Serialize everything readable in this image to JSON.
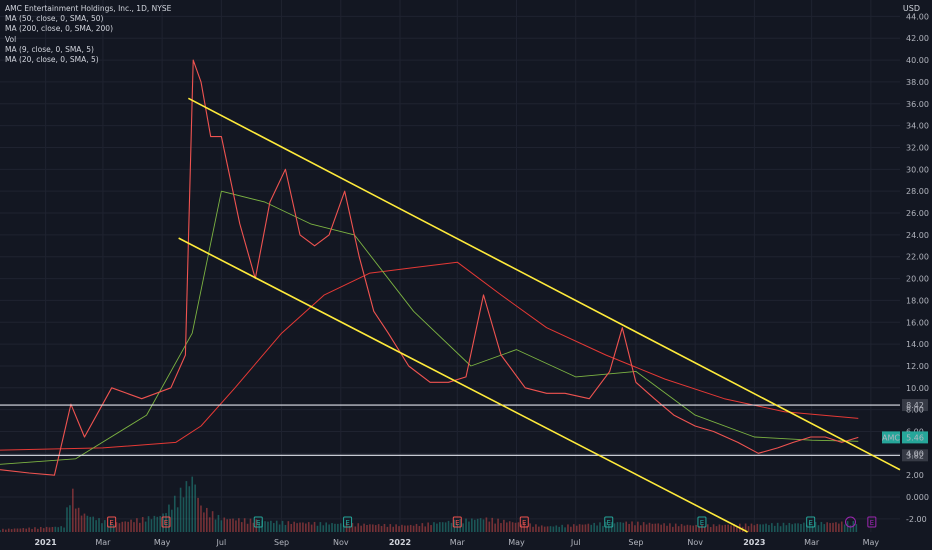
{
  "title": "AMC Entertainment Holdings, Inc., 1D, NYSE",
  "currency": "USD",
  "indicators": [
    "MA (50, close, 0, SMA, 50)",
    "MA (200, close, 0, SMA, 200)",
    "Vol",
    "MA (9, close, 0, SMA, 5)",
    "MA (20, close, 0, SMA, 5)"
  ],
  "colors": {
    "background": "#131722",
    "grid": "#1f2330",
    "up": "#26a69a",
    "down": "#ef5350",
    "trendline": "#ffeb3b",
    "hline": "#e0e3eb",
    "ma200": "#e53935",
    "ma50": "#7cb342",
    "ma9": "#ff9800",
    "ma20": "#4caf50",
    "price_badge": "#26a69a",
    "earnings_up": "#26a69a",
    "earnings_down": "#ef5350",
    "earnings_future": "#9c27b0"
  },
  "chart_data": {
    "type": "line",
    "ylim": [
      -3.2,
      45.5
    ],
    "y_ticks": [
      "-2.00",
      "0.000",
      "2.00",
      "4.00",
      "6.00",
      "8.00",
      "10.00",
      "12.00",
      "14.00",
      "16.00",
      "18.00",
      "20.00",
      "22.00",
      "24.00",
      "26.00",
      "28.00",
      "30.00",
      "32.00",
      "34.00",
      "36.00",
      "38.00",
      "40.00",
      "42.00",
      "44.00"
    ],
    "y_tick_values": [
      -2,
      0,
      2,
      4,
      6,
      8,
      10,
      12,
      14,
      16,
      18,
      20,
      22,
      24,
      26,
      28,
      30,
      32,
      34,
      36,
      38,
      40,
      42,
      44
    ],
    "x_range": [
      "2020-11-15",
      "2023-05-31"
    ],
    "x_ticks": [
      {
        "label": "2021",
        "date": "2021-01-01",
        "year": true
      },
      {
        "label": "Mar",
        "date": "2021-03-01"
      },
      {
        "label": "May",
        "date": "2021-05-01"
      },
      {
        "label": "Jul",
        "date": "2021-07-01"
      },
      {
        "label": "Sep",
        "date": "2021-09-01"
      },
      {
        "label": "Nov",
        "date": "2021-11-01"
      },
      {
        "label": "2022",
        "date": "2022-01-01",
        "year": true
      },
      {
        "label": "Mar",
        "date": "2022-03-01"
      },
      {
        "label": "May",
        "date": "2022-05-01"
      },
      {
        "label": "Jul",
        "date": "2022-07-01"
      },
      {
        "label": "Sep",
        "date": "2022-09-01"
      },
      {
        "label": "Nov",
        "date": "2022-11-01"
      },
      {
        "label": "2023",
        "date": "2023-01-01",
        "year": true
      },
      {
        "label": "Mar",
        "date": "2023-03-01"
      },
      {
        "label": "May",
        "date": "2023-05-01"
      }
    ],
    "price": {
      "dates": [
        "2020-11-15",
        "2020-12-15",
        "2021-01-10",
        "2021-01-27",
        "2021-02-10",
        "2021-03-10",
        "2021-04-10",
        "2021-05-10",
        "2021-05-25",
        "2021-06-02",
        "2021-06-10",
        "2021-06-20",
        "2021-07-01",
        "2021-07-20",
        "2021-08-05",
        "2021-08-20",
        "2021-09-05",
        "2021-09-20",
        "2021-10-05",
        "2021-10-20",
        "2021-11-05",
        "2021-11-20",
        "2021-12-05",
        "2021-12-20",
        "2022-01-10",
        "2022-02-01",
        "2022-02-20",
        "2022-03-10",
        "2022-03-28",
        "2022-04-15",
        "2022-05-10",
        "2022-06-01",
        "2022-06-20",
        "2022-07-15",
        "2022-08-05",
        "2022-08-18",
        "2022-09-01",
        "2022-09-20",
        "2022-10-10",
        "2022-11-01",
        "2022-11-20",
        "2022-12-15",
        "2023-01-05",
        "2023-01-25",
        "2023-02-10",
        "2023-02-28",
        "2023-03-15",
        "2023-04-01",
        "2023-04-18"
      ],
      "values": [
        2.5,
        2.2,
        2.0,
        8.5,
        5.5,
        10.0,
        9.0,
        10.0,
        13.0,
        40.0,
        38.0,
        33.0,
        33.0,
        25.0,
        20.0,
        27.0,
        30.0,
        24.0,
        23.0,
        24.0,
        28.0,
        22.0,
        17.0,
        15.0,
        12.0,
        10.5,
        10.5,
        11.0,
        18.5,
        13.0,
        10.0,
        9.5,
        9.5,
        9.0,
        11.5,
        15.5,
        10.5,
        9.0,
        7.5,
        6.5,
        6.0,
        5.0,
        4.0,
        4.5,
        5.0,
        5.5,
        5.5,
        5.0,
        5.46
      ]
    },
    "ma200": {
      "dates": [
        "2020-11-15",
        "2021-03-01",
        "2021-05-15",
        "2021-06-10",
        "2021-07-15",
        "2021-09-01",
        "2021-10-15",
        "2021-12-01",
        "2022-01-15",
        "2022-03-01",
        "2022-04-15",
        "2022-06-01",
        "2022-08-01",
        "2022-10-01",
        "2022-12-01",
        "2023-02-01",
        "2023-04-18"
      ],
      "values": [
        4.3,
        4.5,
        5.0,
        6.5,
        10.0,
        15.0,
        18.5,
        20.5,
        21.0,
        21.5,
        18.5,
        15.5,
        13.0,
        10.8,
        9.0,
        7.8,
        7.2
      ]
    },
    "ma50": {
      "dates": [
        "2020-11-15",
        "2021-02-01",
        "2021-04-15",
        "2021-06-01",
        "2021-07-01",
        "2021-08-15",
        "2021-10-01",
        "2021-11-15",
        "2022-01-15",
        "2022-03-15",
        "2022-05-01",
        "2022-07-01",
        "2022-09-01",
        "2022-11-01",
        "2023-01-01",
        "2023-03-01",
        "2023-04-18"
      ],
      "values": [
        3.0,
        3.5,
        7.5,
        15.0,
        28.0,
        27.0,
        25.0,
        24.0,
        17.0,
        12.0,
        13.5,
        11.0,
        11.5,
        7.5,
        5.5,
        5.2,
        5.1
      ]
    },
    "hlines": [
      {
        "value": 8.42,
        "label": "8.42"
      },
      {
        "value": 3.82,
        "label": "3.82"
      }
    ],
    "last_price": {
      "label": "AMC",
      "value": 5.46,
      "value_label": "5.46"
    },
    "trendlines": [
      {
        "name": "upper-channel-line",
        "from": {
          "date": "2021-05-28",
          "value": 36.5
        },
        "to": {
          "date": "2023-05-31",
          "value": 2.5
        }
      },
      {
        "name": "lower-channel-line",
        "from": {
          "date": "2021-05-18",
          "value": 23.7
        },
        "to": {
          "date": "2022-12-25",
          "value": -3.2
        }
      }
    ],
    "earnings": [
      {
        "date": "2021-03-10",
        "type": "down"
      },
      {
        "date": "2021-05-05",
        "type": "down"
      },
      {
        "date": "2021-08-08",
        "type": "up"
      },
      {
        "date": "2021-11-08",
        "type": "up"
      },
      {
        "date": "2022-03-01",
        "type": "down"
      },
      {
        "date": "2022-05-09",
        "type": "down"
      },
      {
        "date": "2022-08-04",
        "type": "up"
      },
      {
        "date": "2022-11-08",
        "type": "up"
      },
      {
        "date": "2023-02-28",
        "type": "up"
      },
      {
        "date": "2023-05-02",
        "type": "future"
      }
    ],
    "earnings_label": "E",
    "dividend_marker": {
      "date": "2023-04-10"
    },
    "volume_scale_max": 1,
    "volume": {
      "dates": [
        "2020-11-15",
        "2021-01-20",
        "2021-01-27",
        "2021-02-05",
        "2021-03-10",
        "2021-05-01",
        "2021-05-26",
        "2021-06-02",
        "2021-06-10",
        "2021-07-01",
        "2021-09-01",
        "2021-11-01",
        "2022-01-10",
        "2022-03-28",
        "2022-06-01",
        "2022-08-18",
        "2022-11-01",
        "2023-02-01",
        "2023-04-18"
      ],
      "values": [
        0.05,
        0.1,
        0.8,
        0.35,
        0.15,
        0.3,
        0.85,
        1.0,
        0.45,
        0.25,
        0.18,
        0.15,
        0.12,
        0.25,
        0.1,
        0.18,
        0.12,
        0.15,
        0.18
      ]
    }
  }
}
